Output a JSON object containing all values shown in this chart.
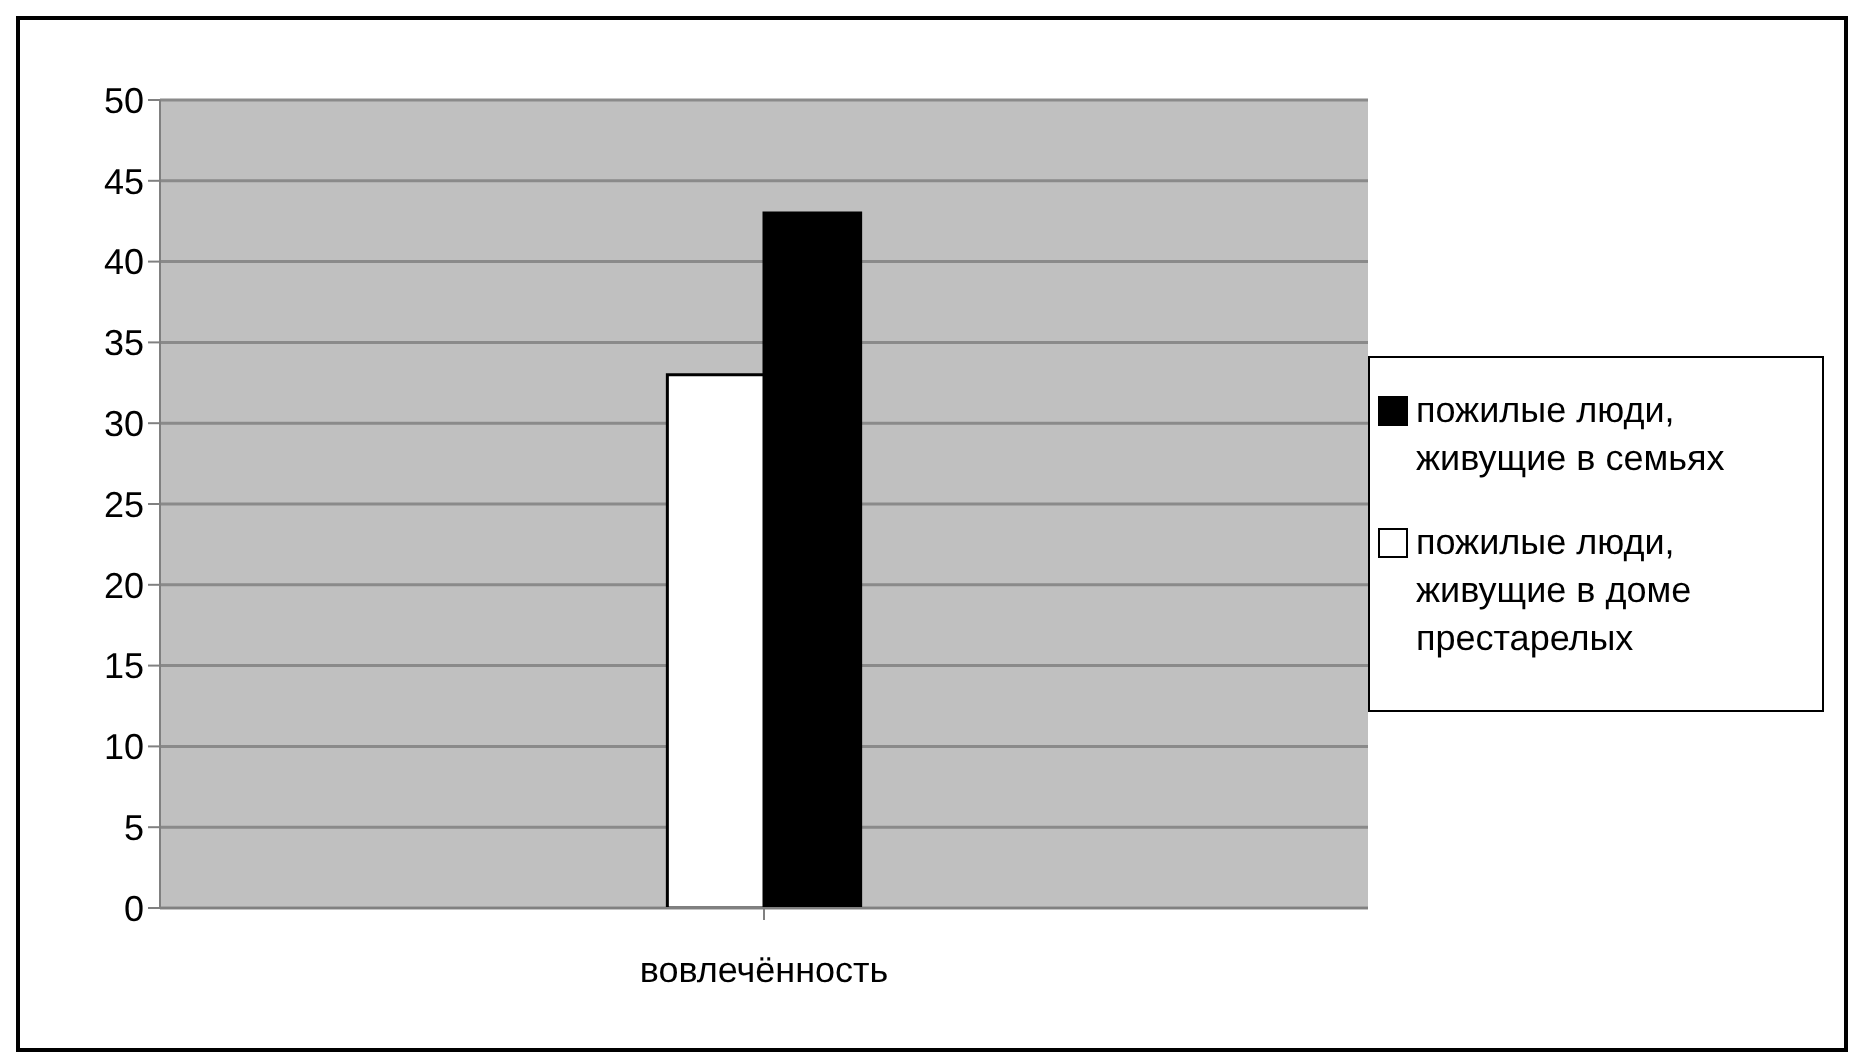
{
  "chart_data": {
    "type": "bar",
    "categories": [
      "вовлечённость"
    ],
    "series": [
      {
        "name": "пожилые люди, живущие в семьях",
        "color": "#000000",
        "values": [
          43
        ]
      },
      {
        "name": "пожилые люди, живущие в доме престарелых",
        "color": "#ffffff",
        "values": [
          33
        ]
      }
    ],
    "ylim": [
      0,
      50
    ],
    "yticks": [
      0,
      5,
      10,
      15,
      20,
      25,
      30,
      35,
      40,
      45,
      50
    ],
    "grid": "y",
    "legend": "right"
  }
}
